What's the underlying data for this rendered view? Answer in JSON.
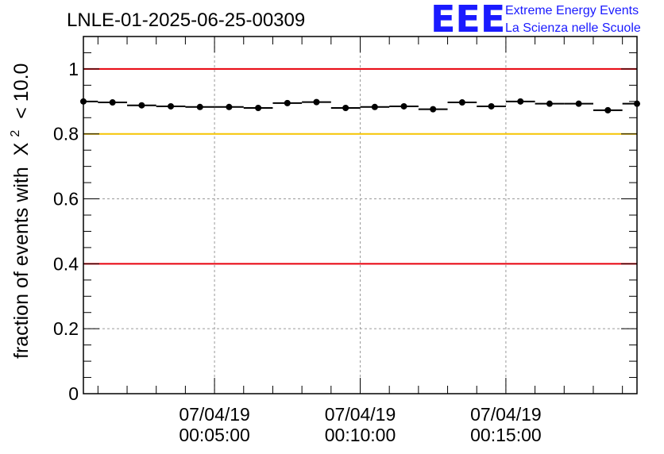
{
  "chart_data": {
    "type": "scatter",
    "title": "LNLE-01-2025-06-25-00309",
    "ylabel": "fraction of events with",
    "ylabel_suffix": "< 10.0",
    "ylabel_symbol": "X",
    "ylabel_exponent": "2",
    "ylim": [
      0,
      1.1
    ],
    "yticks": [
      0,
      0.2,
      0.4,
      0.6,
      0.8,
      1
    ],
    "ytick_labels": [
      "0",
      "0.2",
      "0.4",
      "0.6",
      "0.8",
      "1"
    ],
    "xlim": [
      "07/04/19 00:00:30",
      "07/04/19 00:19:30"
    ],
    "xtick_labels": [
      {
        "t": "07/04/19 00:05:00",
        "date": "07/04/19",
        "time": "00:05:00"
      },
      {
        "t": "07/04/19 00:10:00",
        "date": "07/04/19",
        "time": "00:10:00"
      },
      {
        "t": "07/04/19 00:15:00",
        "date": "07/04/19",
        "time": "00:15:00"
      }
    ],
    "grid": true,
    "reference_lines": [
      {
        "y": 1.0,
        "color": "#e8000b"
      },
      {
        "y": 0.8,
        "color": "#f5c400"
      },
      {
        "y": 0.4,
        "color": "#e8000b"
      }
    ],
    "series": [
      {
        "color": "#000000",
        "x": [
          "07/04/19 00:00:30",
          "07/04/19 00:01:30",
          "07/04/19 00:02:30",
          "07/04/19 00:03:30",
          "07/04/19 00:04:30",
          "07/04/19 00:05:30",
          "07/04/19 00:06:30",
          "07/04/19 00:07:30",
          "07/04/19 00:08:30",
          "07/04/19 00:09:30",
          "07/04/19 00:10:30",
          "07/04/19 00:11:30",
          "07/04/19 00:12:30",
          "07/04/19 00:13:30",
          "07/04/19 00:14:30",
          "07/04/19 00:15:30",
          "07/04/19 00:16:30",
          "07/04/19 00:17:30",
          "07/04/19 00:18:30",
          "07/04/19 00:19:30"
        ],
        "values": [
          0.9,
          0.897,
          0.888,
          0.885,
          0.883,
          0.883,
          0.88,
          0.895,
          0.898,
          0.88,
          0.883,
          0.885,
          0.876,
          0.897,
          0.885,
          0.9,
          0.893,
          0.893,
          0.873,
          0.893
        ]
      }
    ]
  },
  "logo": {
    "letters": "EEE",
    "line1": "Extreme Energy Events",
    "line2": "La Scienza nelle Scuole",
    "color": "#1a1aff"
  }
}
